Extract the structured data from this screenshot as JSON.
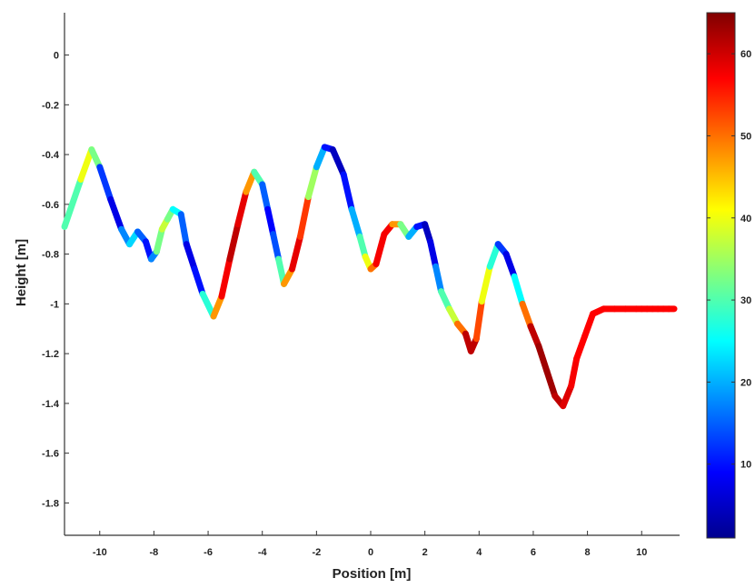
{
  "chart_data": {
    "type": "line",
    "xlabel": "Position [m]",
    "ylabel": "Height [m]",
    "xlim": [
      -11.3,
      11.4
    ],
    "ylim": [
      -1.93,
      0.17
    ],
    "xticks": [
      -10,
      -8,
      -6,
      -4,
      -2,
      0,
      2,
      4,
      6,
      8,
      10
    ],
    "yticks": [
      0,
      -0.2,
      -0.4,
      -0.6,
      -0.8,
      -1,
      -1.2,
      -1.4,
      -1.6,
      -1.8
    ],
    "grid": false,
    "colorbar": {
      "placement": "right",
      "colormap": "jet",
      "range": [
        1,
        65
      ],
      "ticks": [
        10,
        20,
        30,
        40,
        50,
        60
      ]
    },
    "series": [
      {
        "x": [
          -11.3,
          -10.7,
          -10.3,
          -10.0,
          -9.6,
          -9.2,
          -8.9,
          -8.6,
          -8.3,
          -8.1,
          -7.9,
          -7.7,
          -7.5,
          -7.3,
          -7.0,
          -6.8,
          -6.5,
          -6.2,
          -5.8,
          -5.5,
          -5.2,
          -4.9,
          -4.6,
          -4.3,
          -4.0,
          -3.8,
          -3.6,
          -3.4,
          -3.2,
          -2.9,
          -2.6,
          -2.3,
          -2.0,
          -1.7,
          -1.4,
          -1.0,
          -0.7,
          -0.4,
          -0.2,
          0.0,
          0.2,
          0.5,
          0.8,
          1.1,
          1.4,
          1.7,
          2.0,
          2.2,
          2.4,
          2.6,
          2.9,
          3.2,
          3.5,
          3.7,
          3.9,
          4.1,
          4.4,
          4.7,
          5.0,
          5.3,
          5.6,
          5.9,
          6.2,
          6.5,
          6.8,
          7.1,
          7.4,
          7.6,
          7.9,
          8.2,
          8.6,
          9.0,
          9.4,
          9.8,
          10.0,
          10.2,
          10.4,
          10.6,
          10.8,
          11.0,
          11.2
        ],
        "y": [
          -0.69,
          -0.5,
          -0.38,
          -0.45,
          -0.58,
          -0.7,
          -0.76,
          -0.71,
          -0.75,
          -0.82,
          -0.79,
          -0.7,
          -0.66,
          -0.62,
          -0.64,
          -0.76,
          -0.86,
          -0.96,
          -1.05,
          -0.97,
          -0.82,
          -0.68,
          -0.55,
          -0.47,
          -0.52,
          -0.62,
          -0.72,
          -0.82,
          -0.92,
          -0.86,
          -0.73,
          -0.57,
          -0.45,
          -0.37,
          -0.38,
          -0.48,
          -0.62,
          -0.73,
          -0.81,
          -0.86,
          -0.84,
          -0.72,
          -0.68,
          -0.68,
          -0.73,
          -0.69,
          -0.68,
          -0.75,
          -0.85,
          -0.95,
          -1.02,
          -1.08,
          -1.12,
          -1.19,
          -1.14,
          -0.99,
          -0.85,
          -0.76,
          -0.8,
          -0.89,
          -1.0,
          -1.09,
          -1.17,
          -1.27,
          -1.37,
          -1.41,
          -1.33,
          -1.22,
          -1.13,
          -1.04,
          -1.02,
          -1.02,
          -1.02,
          -1.02,
          -1.02,
          -1.02,
          -1.02,
          -1.02,
          -1.02,
          -1.02,
          -1.02
        ],
        "c": [
          25,
          35,
          45,
          20,
          5,
          10,
          25,
          20,
          10,
          10,
          25,
          40,
          35,
          30,
          20,
          10,
          5,
          15,
          40,
          55,
          60,
          62,
          55,
          40,
          20,
          10,
          8,
          20,
          40,
          55,
          62,
          45,
          25,
          15,
          5,
          5,
          15,
          25,
          35,
          45,
          55,
          60,
          55,
          40,
          25,
          15,
          5,
          5,
          10,
          25,
          35,
          40,
          60,
          62,
          60,
          45,
          35,
          20,
          5,
          10,
          40,
          60,
          62,
          64,
          62,
          60,
          58,
          57,
          57,
          57,
          57,
          57,
          57,
          57,
          57,
          57,
          57,
          57,
          57,
          57,
          57
        ]
      }
    ]
  }
}
